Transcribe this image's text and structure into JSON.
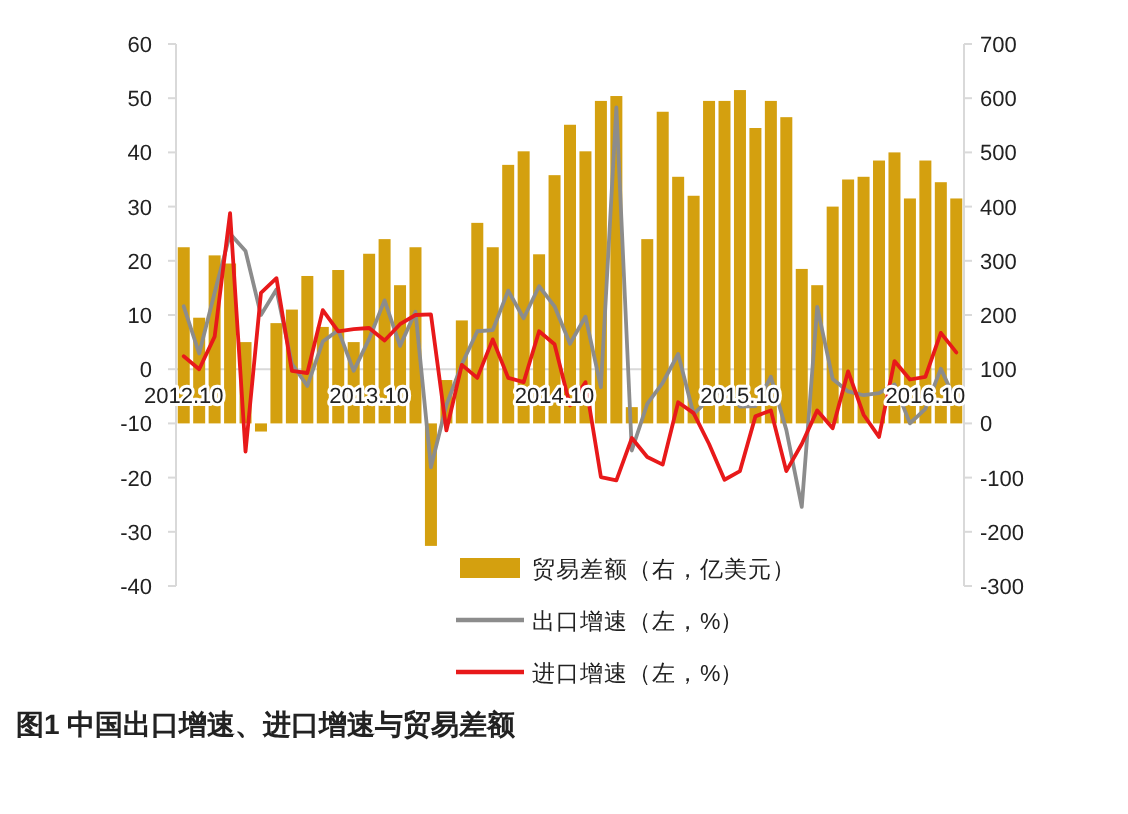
{
  "chart_data": {
    "type": "bar",
    "title": "图1 中国出口增速、进口增速与贸易差额",
    "categories": [
      "2012.10",
      null,
      null,
      null,
      null,
      null,
      null,
      null,
      null,
      null,
      null,
      null,
      "2013.10",
      null,
      null,
      null,
      null,
      null,
      null,
      null,
      null,
      null,
      null,
      null,
      "2014.10",
      null,
      null,
      null,
      null,
      null,
      null,
      null,
      null,
      null,
      null,
      null,
      "2015.10",
      null,
      null,
      null,
      null,
      null,
      null,
      null,
      null,
      null,
      null,
      null,
      "2016.10",
      null,
      null
    ],
    "series": [
      {
        "name": "贸易差额（右，亿美元）",
        "color": "#d4a00f",
        "axis": "y2",
        "values": [
          325,
          195,
          310,
          295,
          150,
          -15,
          185,
          210,
          272,
          178,
          283,
          150,
          313,
          340,
          255,
          325,
          -226,
          80,
          190,
          370,
          325,
          477,
          502,
          312,
          458,
          551,
          502,
          595,
          604,
          30,
          340,
          575,
          455,
          420,
          595,
          595,
          615,
          545,
          595,
          565,
          285,
          255,
          400,
          450,
          455,
          485,
          500,
          415,
          485,
          445,
          415
        ]
      },
      {
        "name": "出口增速（左，%）",
        "type": "line",
        "color": "#8c8c8c",
        "values": [
          11.6,
          2.9,
          14.1,
          25.0,
          21.8,
          10.0,
          14.7,
          1.0,
          -3.1,
          5.1,
          7.2,
          -0.3,
          5.6,
          12.7,
          4.3,
          10.6,
          -18.1,
          -6.6,
          0.9,
          7.0,
          7.2,
          14.5,
          9.4,
          15.3,
          11.6,
          4.7,
          9.7,
          -3.3,
          48.3,
          -15.0,
          -6.4,
          -2.5,
          2.8,
          -8.3,
          -5.5,
          -3.7,
          -6.9,
          -6.8,
          -1.4,
          -11.2,
          -25.4,
          11.5,
          -1.8,
          -4.1,
          -4.8,
          -4.4,
          -2.8,
          -10.0,
          -7.3,
          0.1,
          -6.1
        ]
      },
      {
        "name": "进口增速（左，%）",
        "type": "line",
        "color": "#e8191a",
        "values": [
          2.4,
          0.0,
          6.0,
          28.8,
          -15.2,
          14.1,
          16.8,
          -0.3,
          -0.7,
          10.9,
          7.0,
          7.4,
          7.6,
          5.3,
          8.3,
          10.0,
          10.1,
          -11.3,
          0.8,
          -1.6,
          5.5,
          -1.6,
          -2.4,
          7.0,
          4.6,
          -6.7,
          -2.4,
          -19.9,
          -20.5,
          -12.7,
          -16.2,
          -17.6,
          -6.1,
          -8.1,
          -13.8,
          -20.4,
          -18.8,
          -8.7,
          -7.6,
          -18.8,
          -13.8,
          -7.6,
          -10.9,
          -0.4,
          -8.4,
          -12.5,
          1.5,
          -1.9,
          -1.4,
          6.7,
          3.1
        ]
      }
    ],
    "ylim": [
      -40,
      60
    ],
    "yticks": [
      -40,
      -30,
      -20,
      -10,
      0,
      10,
      20,
      30,
      40,
      50,
      60
    ],
    "y2lim": [
      -300,
      700
    ],
    "y2ticks": [
      -300,
      -200,
      -100,
      0,
      100,
      200,
      300,
      400,
      500,
      600,
      700
    ],
    "legend": "bottom"
  }
}
